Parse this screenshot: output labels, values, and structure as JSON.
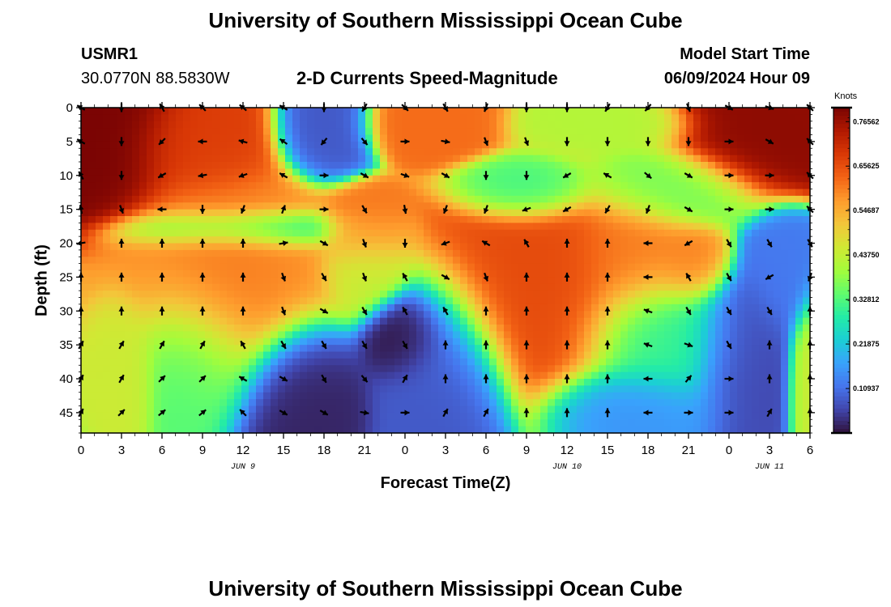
{
  "page": {
    "title": "University of Southern Mississippi Ocean Cube",
    "station_id": "USMR1",
    "location": "30.0770N  88.5830W",
    "model_start_label": "Model Start Time",
    "model_start_value": "06/09/2024 Hour 09",
    "bottom_title": "University of Southern Mississippi Ocean Cube"
  },
  "chart_data": {
    "type": "heatmap",
    "title": "2-D Currents Speed-Magnitude",
    "xlabel": "Forecast Time(Z)",
    "ylabel": "Depth (ft)",
    "x_tick_labels": [
      "0",
      "3",
      "6",
      "9",
      "12",
      "15",
      "18",
      "21",
      "0",
      "3",
      "6",
      "9",
      "12",
      "15",
      "18",
      "21",
      "0",
      "3",
      "6"
    ],
    "x_range_hours": [
      0,
      54
    ],
    "y_ticks": [
      0,
      5,
      10,
      15,
      20,
      25,
      30,
      35,
      40,
      45
    ],
    "y_tick_labels": [
      "0",
      "5",
      "10",
      "15",
      "20",
      "25",
      "30",
      "35",
      "40",
      "45"
    ],
    "y_range": [
      0,
      48
    ],
    "y_inverted": true,
    "date_labels": [
      {
        "text": "JUN 9",
        "hour": 12
      },
      {
        "text": "JUN 10",
        "hour": 36
      },
      {
        "text": "JUN 11",
        "hour": 51
      }
    ],
    "colorbar": {
      "units": "Knots",
      "min": 0.0,
      "max": 0.8,
      "tick_values": [
        0.765625,
        0.65625,
        0.546875,
        0.4375,
        0.328125,
        0.21875,
        0.109375
      ],
      "tick_labels": [
        "0.76562",
        "0.65625",
        "0.54687",
        "0.43750",
        "0.32812",
        "0.21875",
        "0.10937"
      ],
      "colors": [
        "#30123b",
        "#4145ab",
        "#4675ed",
        "#39a2fc",
        "#1bcfd4",
        "#24eca6",
        "#61fc6c",
        "#a4fc3b",
        "#d1e834",
        "#f3c63a",
        "#fe9b2d",
        "#f36315",
        "#d93806",
        "#b11901",
        "#7a0403"
      ]
    },
    "speed_hotspots": [
      {
        "t": 1,
        "d": 5,
        "v": 0.8,
        "st": 4,
        "sd": 7
      },
      {
        "t": 9,
        "d": 6,
        "v": 0.68,
        "st": 3.5,
        "sd": 5
      },
      {
        "t": 18,
        "d": 4,
        "v": 0.08,
        "st": 2.2,
        "sd": 4
      },
      {
        "t": 21,
        "d": 18,
        "v": 0.62,
        "st": 2,
        "sd": 4
      },
      {
        "t": 26,
        "d": 3,
        "v": 0.62,
        "st": 3,
        "sd": 3
      },
      {
        "t": 39,
        "d": 3,
        "v": 0.42,
        "st": 4,
        "sd": 2.5
      },
      {
        "t": 50,
        "d": 5,
        "v": 0.78,
        "st": 4,
        "sd": 5
      },
      {
        "t": 11,
        "d": 26,
        "v": 0.62,
        "st": 3,
        "sd": 9
      },
      {
        "t": 21,
        "d": 23,
        "v": 0.44,
        "st": 2,
        "sd": 5
      },
      {
        "t": 27,
        "d": 40,
        "v": 0.08,
        "st": 3,
        "sd": 9
      },
      {
        "t": 16,
        "d": 42,
        "v": 0.02,
        "st": 3,
        "sd": 7
      },
      {
        "t": 24,
        "d": 34,
        "v": 0.0,
        "st": 2,
        "sd": 4
      },
      {
        "t": 3,
        "d": 38,
        "v": 0.45,
        "st": 1.5,
        "sd": 6
      },
      {
        "t": 9,
        "d": 36,
        "v": 0.32,
        "st": 3,
        "sd": 7
      },
      {
        "t": 11,
        "d": 24,
        "v": 0.58,
        "st": 5,
        "sd": 10
      },
      {
        "t": 34,
        "d": 27,
        "v": 0.66,
        "st": 5,
        "sd": 10
      },
      {
        "t": 41,
        "d": 22,
        "v": 0.6,
        "st": 3,
        "sd": 6
      },
      {
        "t": 45,
        "d": 23,
        "v": 0.6,
        "st": 2,
        "sd": 4
      },
      {
        "t": 44,
        "d": 12,
        "v": 0.36,
        "st": 4,
        "sd": 4
      },
      {
        "t": 43,
        "d": 34,
        "v": 0.3,
        "st": 4,
        "sd": 7
      },
      {
        "t": 49,
        "d": 36,
        "v": 0.06,
        "st": 2.5,
        "sd": 8
      },
      {
        "t": 52,
        "d": 25,
        "v": 0.12,
        "st": 2,
        "sd": 6
      },
      {
        "t": 54,
        "d": 38,
        "v": 0.45,
        "st": 1,
        "sd": 7
      },
      {
        "t": 41,
        "d": 44,
        "v": 0.15,
        "st": 4,
        "sd": 4
      },
      {
        "t": 33,
        "d": 12,
        "v": 0.3,
        "st": 3,
        "sd": 3
      },
      {
        "t": 12,
        "d": 18,
        "v": 0.22,
        "st": 5,
        "sd": 2
      }
    ],
    "vector_times": [
      0,
      3,
      6,
      9,
      12,
      15,
      18,
      21,
      24,
      27,
      30,
      33,
      36,
      39,
      42,
      45,
      48,
      51,
      54
    ],
    "vector_depths": [
      0,
      5,
      10,
      15,
      20,
      25,
      30,
      35,
      40,
      45
    ],
    "vector_directions_deg": [
      [
        300,
        180,
        330,
        315,
        310,
        300,
        180,
        210,
        135,
        150,
        200,
        180,
        180,
        210,
        220,
        160,
        120,
        110,
        315
      ],
      [
        300,
        180,
        225,
        270,
        285,
        305,
        220,
        140,
        90,
        100,
        160,
        160,
        180,
        180,
        180,
        180,
        90,
        120,
        315
      ],
      [
        330,
        180,
        240,
        260,
        250,
        300,
        90,
        120,
        110,
        120,
        180,
        180,
        240,
        300,
        130,
        120,
        90,
        90,
        315
      ],
      [
        350,
        160,
        270,
        180,
        200,
        20,
        90,
        150,
        170,
        200,
        200,
        250,
        240,
        210,
        200,
        120,
        90,
        90,
        315
      ],
      [
        260,
        0,
        0,
        0,
        0,
        80,
        120,
        160,
        180,
        250,
        300,
        330,
        0,
        0,
        270,
        240,
        150,
        150,
        150
      ],
      [
        0,
        0,
        0,
        0,
        0,
        160,
        150,
        160,
        330,
        120,
        160,
        0,
        0,
        0,
        270,
        330,
        150,
        240,
        200
      ],
      [
        0,
        0,
        0,
        0,
        0,
        160,
        120,
        150,
        330,
        330,
        0,
        0,
        0,
        0,
        290,
        150,
        150,
        150,
        0
      ],
      [
        30,
        30,
        30,
        30,
        330,
        150,
        150,
        150,
        150,
        0,
        0,
        0,
        0,
        0,
        290,
        110,
        150,
        0,
        0
      ],
      [
        30,
        30,
        45,
        45,
        300,
        120,
        150,
        140,
        30,
        0,
        0,
        0,
        0,
        0,
        270,
        40,
        90,
        0,
        0
      ],
      [
        30,
        45,
        50,
        50,
        315,
        120,
        120,
        100,
        90,
        30,
        30,
        0,
        0,
        0,
        270,
        90,
        90,
        30,
        0
      ]
    ]
  }
}
